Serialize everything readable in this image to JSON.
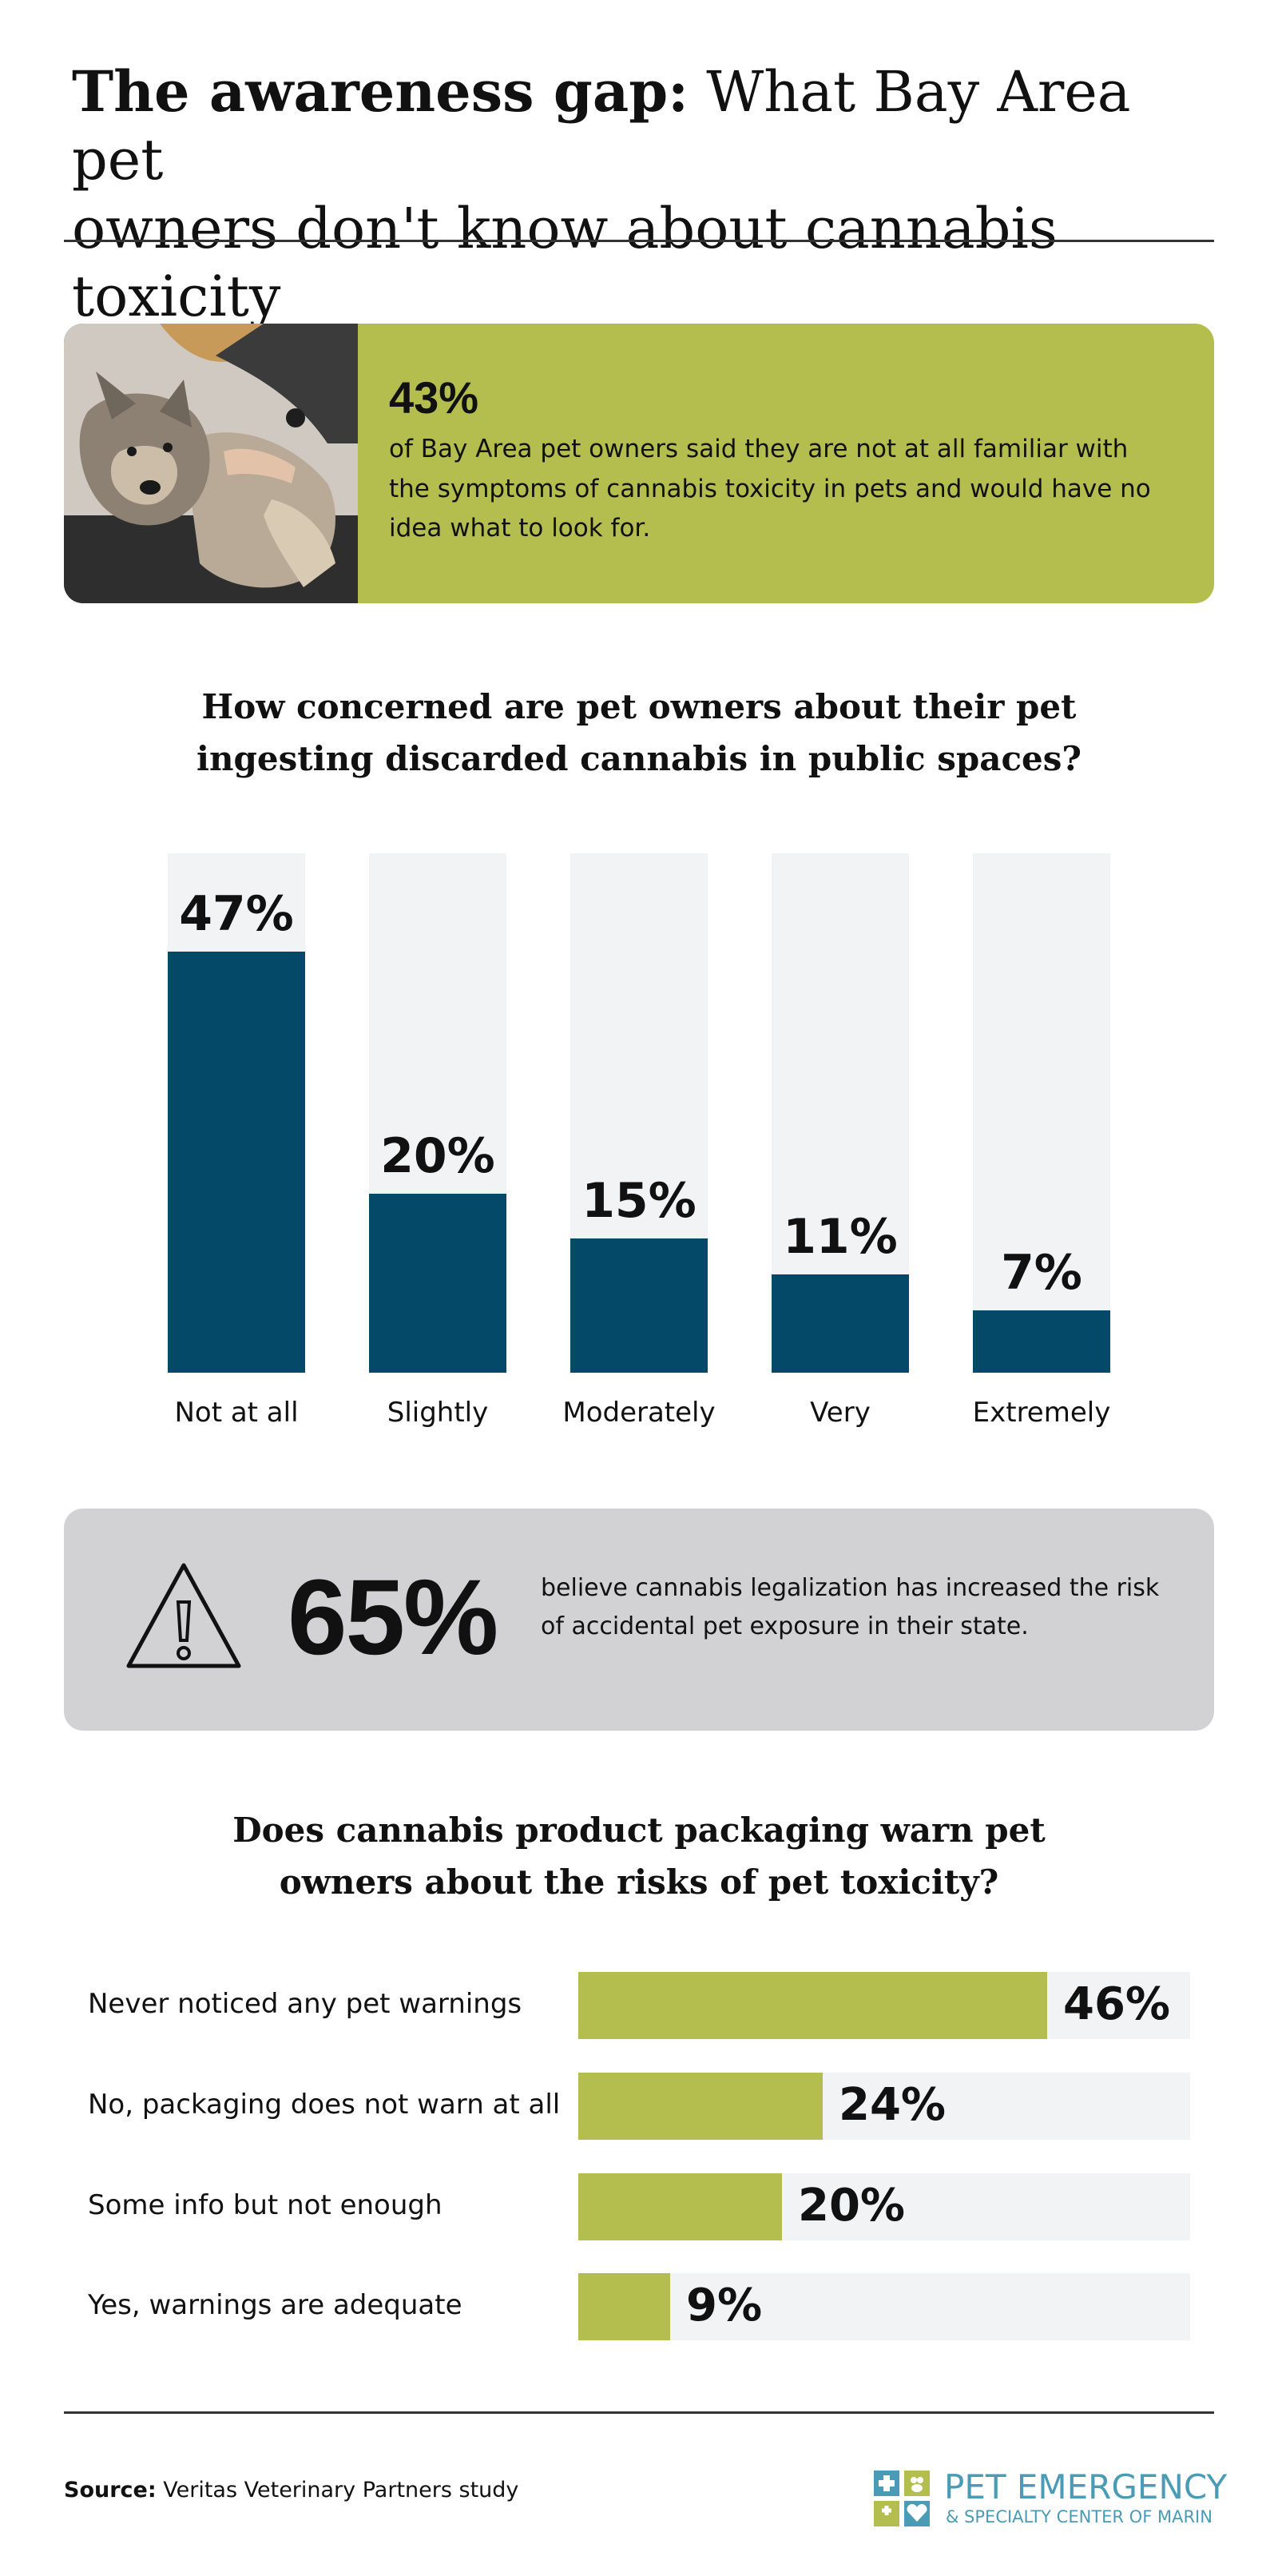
{
  "title": {
    "bold": "The awareness gap:",
    "rest_line1": "What Bay Area pet",
    "rest_line2": "owners don't know about cannabis toxicity"
  },
  "hero": {
    "stat": "43%",
    "text": "of Bay Area pet owners said they are not at all familiar with the symptoms of cannabis toxicity in pets and would have no idea what to look for."
  },
  "chart_data": [
    {
      "type": "bar",
      "title": "How concerned are pet owners about their pet ingesting discarded cannabis in public spaces?",
      "title_line1": "How concerned are pet owners about their pet",
      "title_line2": "ingesting discarded cannabis in public spaces?",
      "categories": [
        "Not at all",
        "Slightly",
        "Moderately",
        "Very",
        "Extremely"
      ],
      "values": [
        47,
        20,
        15,
        11,
        7
      ],
      "labels": [
        "47%",
        "20%",
        "15%",
        "11%",
        "7%"
      ],
      "ylim": [
        0,
        58
      ],
      "color": "#044a68"
    },
    {
      "type": "bar",
      "orientation": "horizontal",
      "title": "Does cannabis product packaging warn pet owners about the risks of pet toxicity?",
      "title_line1": "Does cannabis product packaging warn pet",
      "title_line2": "owners about the risks of pet toxicity?",
      "categories": [
        "Never noticed any pet warnings",
        "No, packaging does not warn at all",
        "Some info but not enough",
        "Yes, warnings are adequate"
      ],
      "values": [
        46,
        24,
        20,
        9
      ],
      "labels": [
        "46%",
        "24%",
        "20%",
        "9%"
      ],
      "xlim": [
        0,
        60
      ],
      "color": "#b4be4f"
    }
  ],
  "callout": {
    "stat": "65%",
    "text": "believe cannabis legalization has increased the risk of accidental pet exposure in their state."
  },
  "footer": {
    "source_label": "Source:",
    "source_text": "Veritas Veterinary Partners study",
    "logo_line1": "PET EMERGENCY",
    "logo_line2": "& SPECIALTY CENTER OF MARIN"
  },
  "colors": {
    "olive": "#b4be4f",
    "navy": "#044a68",
    "track": "#f2f3f4",
    "gray_box": "#d2d2d4",
    "logo_blue": "#4a9bb5"
  }
}
